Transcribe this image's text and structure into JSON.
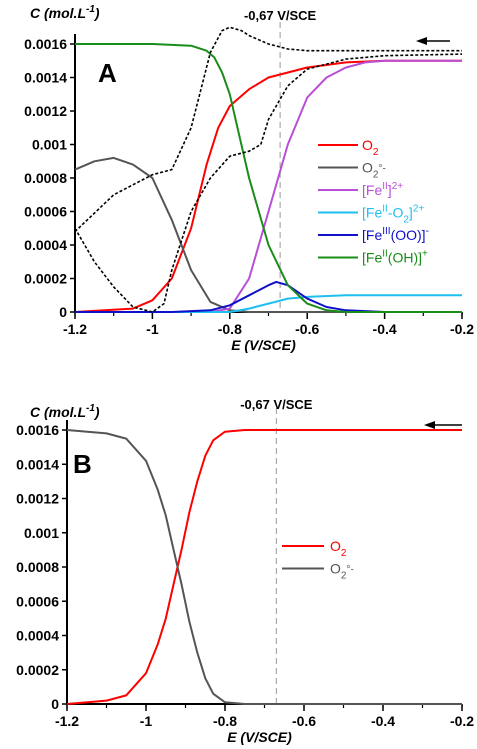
{
  "chart_data": [
    {
      "type": "line",
      "panel_label": "A",
      "y_title": "C (mol.L-1)",
      "x_title": "E (V/SCE)",
      "xlim": [
        -1.2,
        -0.2
      ],
      "ylim": [
        0,
        0.0016
      ],
      "x_ticks": [
        -1.2,
        -1,
        -0.8,
        -0.6,
        -0.4,
        -0.2
      ],
      "y_ticks": [
        0,
        0.0002,
        0.0004,
        0.0006,
        0.0008,
        0.001,
        0.0012,
        0.0014,
        0.0016
      ],
      "x_tick_labels": [
        "-1.2",
        "-1",
        "-0.8",
        "-0.6",
        "-0.4",
        "-0.2"
      ],
      "y_tick_labels": [
        "0",
        "0.0002",
        "0.0004",
        "0.0006",
        "0.0008",
        "0.001",
        "0.0012",
        "0.0014",
        "0.0016"
      ],
      "vline_x": -0.67,
      "vline_label": "-0,67 V/SCE",
      "scan_direction": "arrow pointing left (toward negative potentials)",
      "series": [
        {
          "name": "O2",
          "legend": [
            "O",
            "2",
            ""
          ],
          "color": "#ff0000",
          "x": [
            -1.2,
            -1.05,
            -1.0,
            -0.95,
            -0.9,
            -0.86,
            -0.83,
            -0.8,
            -0.75,
            -0.7,
            -0.6,
            -0.5,
            -0.4,
            -0.2
          ],
          "y": [
            0.0,
            2e-05,
            7e-05,
            0.0002,
            0.0005,
            0.00088,
            0.0011,
            0.00123,
            0.00133,
            0.0014,
            0.00146,
            0.00149,
            0.0015,
            0.0015
          ]
        },
        {
          "name": "O2°-",
          "legend": [
            "O",
            "2",
            "°-"
          ],
          "color": "#555555",
          "x": [
            -1.2,
            -1.15,
            -1.1,
            -1.05,
            -1.0,
            -0.95,
            -0.9,
            -0.85,
            -0.8,
            -0.75,
            -0.2
          ],
          "y": [
            0.00085,
            0.0009,
            0.00092,
            0.00088,
            0.0008,
            0.00055,
            0.00025,
            6e-05,
            1e-05,
            0.0,
            0.0
          ]
        },
        {
          "name": "[FeII]2+",
          "legend": [
            "[Fe",
            "II",
            "]",
            "2+"
          ],
          "color": "#b84fd6",
          "x": [
            -1.2,
            -0.85,
            -0.8,
            -0.75,
            -0.7,
            -0.65,
            -0.6,
            -0.55,
            -0.5,
            -0.45,
            -0.4,
            -0.2
          ],
          "y": [
            0.0,
            0.0,
            2e-05,
            0.0002,
            0.0006,
            0.001,
            0.00128,
            0.0014,
            0.00146,
            0.00149,
            0.0015,
            0.0015
          ]
        },
        {
          "name": "[FeII-O2]2+",
          "legend": [
            "[Fe",
            "II",
            "-O",
            "2",
            "]",
            "2+"
          ],
          "color": "#1fbff0",
          "x": [
            -1.2,
            -0.8,
            -0.75,
            -0.7,
            -0.65,
            -0.6,
            -0.5,
            -0.4,
            -0.2
          ],
          "y": [
            0.0,
            0.0,
            2e-05,
            5e-05,
            8e-05,
            9e-05,
            0.0001,
            0.0001,
            0.0001
          ]
        },
        {
          "name": "[FeIII(OO)]-",
          "legend": [
            "[Fe",
            "III",
            "(OO)]",
            "-"
          ],
          "color": "#1010cc",
          "x": [
            -1.2,
            -0.95,
            -0.85,
            -0.8,
            -0.75,
            -0.7,
            -0.68,
            -0.65,
            -0.6,
            -0.55,
            -0.5,
            -0.4,
            -0.2
          ],
          "y": [
            0.0,
            0.0,
            1e-05,
            4e-05,
            0.0001,
            0.00016,
            0.00018,
            0.00016,
            8e-05,
            3e-05,
            1e-05,
            0.0,
            0.0
          ]
        },
        {
          "name": "[FeII(OH)]+",
          "legend": [
            "[Fe",
            "II",
            "(OH)]",
            "+"
          ],
          "color": "#1a8c1a",
          "x": [
            -1.2,
            -1.0,
            -0.9,
            -0.86,
            -0.84,
            -0.82,
            -0.8,
            -0.78,
            -0.75,
            -0.7,
            -0.65,
            -0.6,
            -0.55,
            -0.5,
            -0.45,
            -0.4,
            -0.2
          ],
          "y": [
            0.0016,
            0.0016,
            0.00159,
            0.00156,
            0.00152,
            0.00143,
            0.0013,
            0.0011,
            0.0008,
            0.0004,
            0.00016,
            5e-05,
            1e-05,
            0.0,
            0.0,
            0.0,
            0.0
          ]
        },
        {
          "name": "",
          "color": "#000000",
          "dashed": true,
          "x": [
            -1.2,
            -1.1,
            -1.0,
            -0.95,
            -0.9,
            -0.85,
            -0.82,
            -0.8,
            -0.77,
            -0.75,
            -0.7,
            -0.65,
            -0.6,
            -0.5,
            -0.4,
            -0.2
          ],
          "y": [
            0.00048,
            0.0007,
            0.00082,
            0.00085,
            0.0011,
            0.00155,
            0.00168,
            0.0017,
            0.00168,
            0.00165,
            0.0016,
            0.00157,
            0.00156,
            0.00156,
            0.00156,
            0.00156
          ]
        },
        {
          "name": "",
          "color": "#000000",
          "dashed": true,
          "x": [
            -1.2,
            -1.15,
            -1.1,
            -1.05,
            -1.0,
            -0.97,
            -0.95,
            -0.9,
            -0.85,
            -0.8,
            -0.75,
            -0.72,
            -0.7,
            -0.65,
            -0.6,
            -0.5,
            -0.4,
            -0.2
          ],
          "y": [
            0.0005,
            0.0003,
            0.00015,
            3e-05,
            0.0,
            5e-05,
            0.00025,
            0.0006,
            0.0008,
            0.00093,
            0.00096,
            0.001,
            0.00115,
            0.00135,
            0.00145,
            0.00151,
            0.00153,
            0.00154
          ]
        }
      ]
    },
    {
      "type": "line",
      "panel_label": "B",
      "y_title": "C (mol.L-1)",
      "x_title": "E (V/SCE)",
      "xlim": [
        -1.2,
        -0.2
      ],
      "ylim": [
        0,
        0.0016
      ],
      "x_ticks": [
        -1.2,
        -1,
        -0.8,
        -0.6,
        -0.4,
        -0.2
      ],
      "y_ticks": [
        0,
        0.0002,
        0.0004,
        0.0006,
        0.0008,
        0.001,
        0.0012,
        0.0014,
        0.0016
      ],
      "x_tick_labels": [
        "-1.2",
        "-1",
        "-0.8",
        "-0.6",
        "-0.4",
        "-0.2"
      ],
      "y_tick_labels": [
        "0",
        "0.0002",
        "0.0004",
        "0.0006",
        "0.0008",
        "0.001",
        "0.0012",
        "0.0014",
        "0.0016"
      ],
      "vline_x": -0.67,
      "vline_label": "-0,67 V/SCE",
      "scan_direction": "arrow pointing left (toward negative potentials)",
      "series": [
        {
          "name": "O2",
          "legend": [
            "O",
            "2",
            ""
          ],
          "color": "#ff0000",
          "x": [
            -1.2,
            -1.1,
            -1.05,
            -1.0,
            -0.97,
            -0.95,
            -0.93,
            -0.91,
            -0.89,
            -0.87,
            -0.85,
            -0.83,
            -0.8,
            -0.75,
            -0.7,
            -0.6,
            -0.2
          ],
          "y": [
            0.0,
            2e-05,
            5e-05,
            0.00018,
            0.00035,
            0.0005,
            0.0007,
            0.0009,
            0.00112,
            0.0013,
            0.00145,
            0.00154,
            0.00159,
            0.0016,
            0.0016,
            0.0016,
            0.0016
          ]
        },
        {
          "name": "O2°-",
          "legend": [
            "O",
            "2",
            "°-"
          ],
          "color": "#555555",
          "x": [
            -1.2,
            -1.1,
            -1.05,
            -1.0,
            -0.97,
            -0.95,
            -0.93,
            -0.91,
            -0.89,
            -0.87,
            -0.85,
            -0.83,
            -0.8,
            -0.75,
            -0.7,
            -0.6,
            -0.2
          ],
          "y": [
            0.0016,
            0.00158,
            0.00155,
            0.00142,
            0.00125,
            0.0011,
            0.0009,
            0.0007,
            0.00048,
            0.0003,
            0.00015,
            6e-05,
            1e-05,
            0.0,
            0.0,
            0.0,
            0.0
          ]
        }
      ]
    }
  ]
}
